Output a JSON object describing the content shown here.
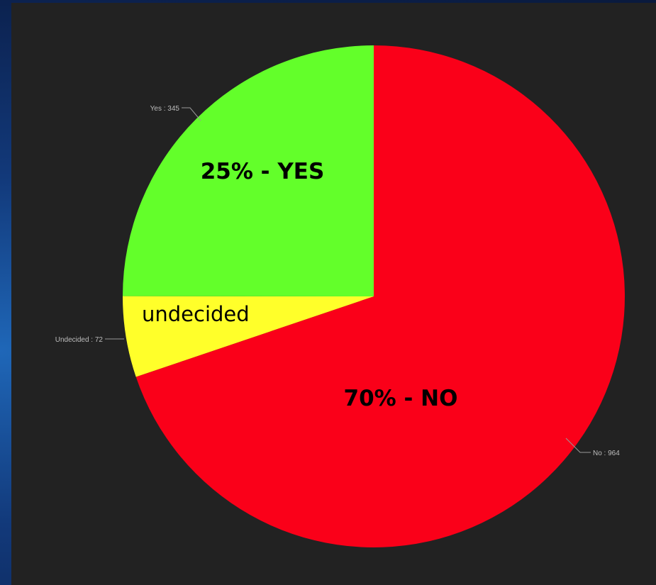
{
  "colors": {
    "background_frame": "#12397a",
    "panel": "#222222",
    "callout_line": "#9a9a9a"
  },
  "chart_data": {
    "type": "pie",
    "slices": [
      {
        "label": "No",
        "value": 964,
        "color": "#fa0019",
        "callout": "No : 964",
        "overlay": "70% - NO"
      },
      {
        "label": "Undecided",
        "value": 72,
        "color": "#ffff2a",
        "callout": "Undecided : 72",
        "overlay": "undecided"
      },
      {
        "label": "Yes",
        "value": 345,
        "color": "#63ff2a",
        "callout": "Yes : 345",
        "overlay": "25% - YES"
      }
    ],
    "start_angle": "12 o'clock",
    "direction": "clockwise",
    "legend": "none"
  }
}
